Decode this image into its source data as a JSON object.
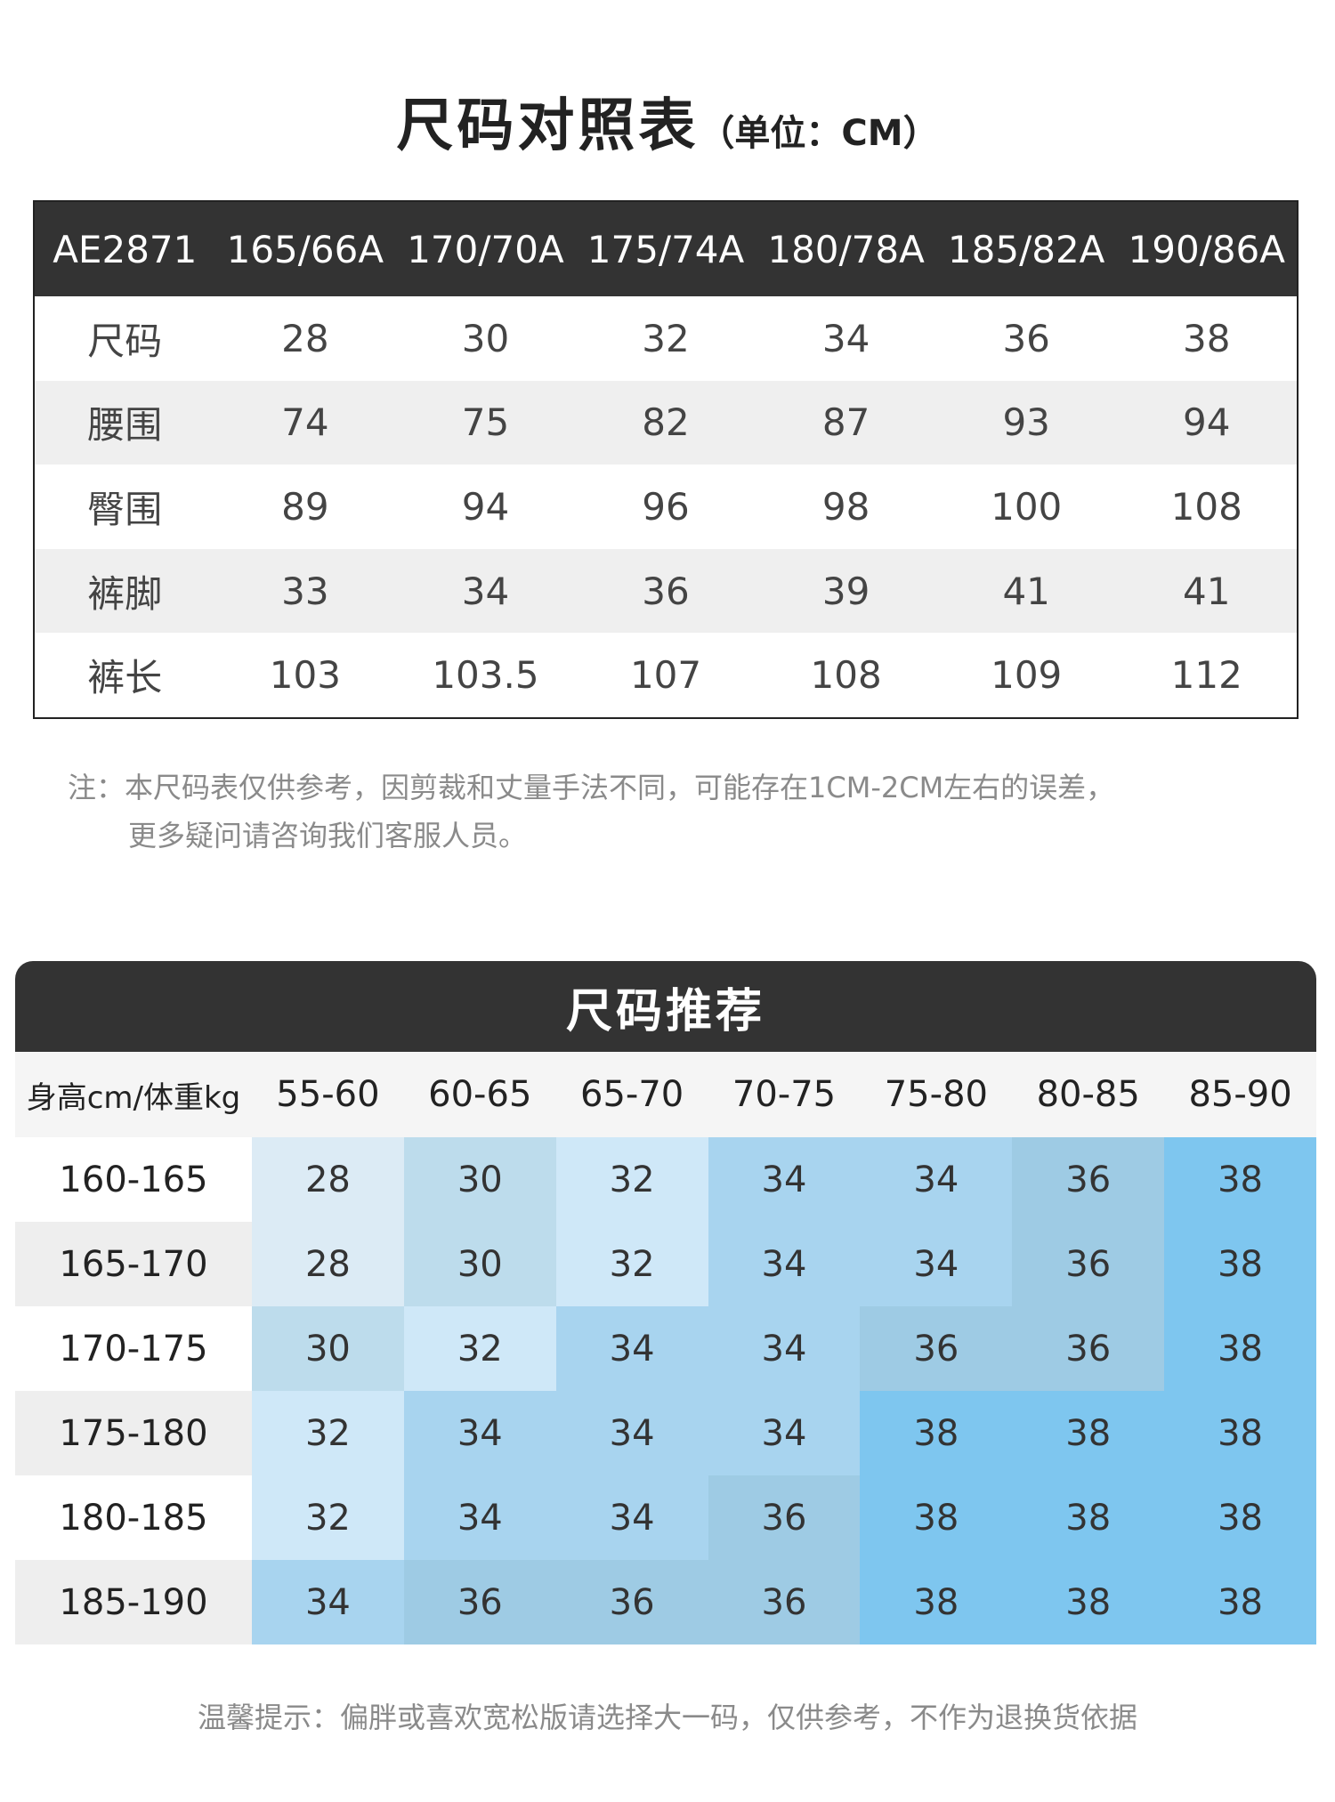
{
  "title": {
    "main": "尺码对照表",
    "unit": "（单位：CM）"
  },
  "size_table": {
    "header": [
      "AE2871",
      "165/66A",
      "170/70A",
      "175/74A",
      "180/78A",
      "185/82A",
      "190/86A"
    ],
    "rows": [
      [
        "尺码",
        "28",
        "30",
        "32",
        "34",
        "36",
        "38"
      ],
      [
        "腰围",
        "74",
        "75",
        "82",
        "87",
        "93",
        "94"
      ],
      [
        "臀围",
        "89",
        "94",
        "96",
        "98",
        "100",
        "108"
      ],
      [
        "裤脚",
        "33",
        "34",
        "36",
        "39",
        "41",
        "41"
      ],
      [
        "裤长",
        "103",
        "103.5",
        "107",
        "108",
        "109",
        "112"
      ]
    ]
  },
  "note": {
    "line1": "注：本尺码表仅供参考，因剪裁和丈量手法不同，可能存在1CM-2CM左右的误差，",
    "line2": "更多疑问请咨询我们客服人员。"
  },
  "recommend": {
    "title": "尺码推荐",
    "corner": "身高cm/体重kg",
    "weights": [
      "55-60",
      "60-65",
      "65-70",
      "70-75",
      "75-80",
      "80-85",
      "85-90"
    ],
    "rows": [
      {
        "height": "160-165",
        "sizes": [
          "28",
          "30",
          "32",
          "34",
          "34",
          "36",
          "38"
        ]
      },
      {
        "height": "165-170",
        "sizes": [
          "28",
          "30",
          "32",
          "34",
          "34",
          "36",
          "38"
        ]
      },
      {
        "height": "170-175",
        "sizes": [
          "30",
          "32",
          "34",
          "34",
          "36",
          "36",
          "38"
        ]
      },
      {
        "height": "175-180",
        "sizes": [
          "32",
          "34",
          "34",
          "34",
          "38",
          "38",
          "38"
        ]
      },
      {
        "height": "180-185",
        "sizes": [
          "32",
          "34",
          "34",
          "36",
          "38",
          "38",
          "38"
        ]
      },
      {
        "height": "185-190",
        "sizes": [
          "34",
          "36",
          "36",
          "36",
          "38",
          "38",
          "38"
        ]
      }
    ],
    "size_colors": {
      "28": "#dcebf5",
      "30": "#bddcec",
      "32": "#cfe8f8",
      "34": "#a8d4ef",
      "36": "#9ecbe4",
      "38": "#7ec6ef"
    }
  },
  "tip": "温馨提示：偏胖或喜欢宽松版请选择大一码，仅供参考，不作为退换货依据"
}
